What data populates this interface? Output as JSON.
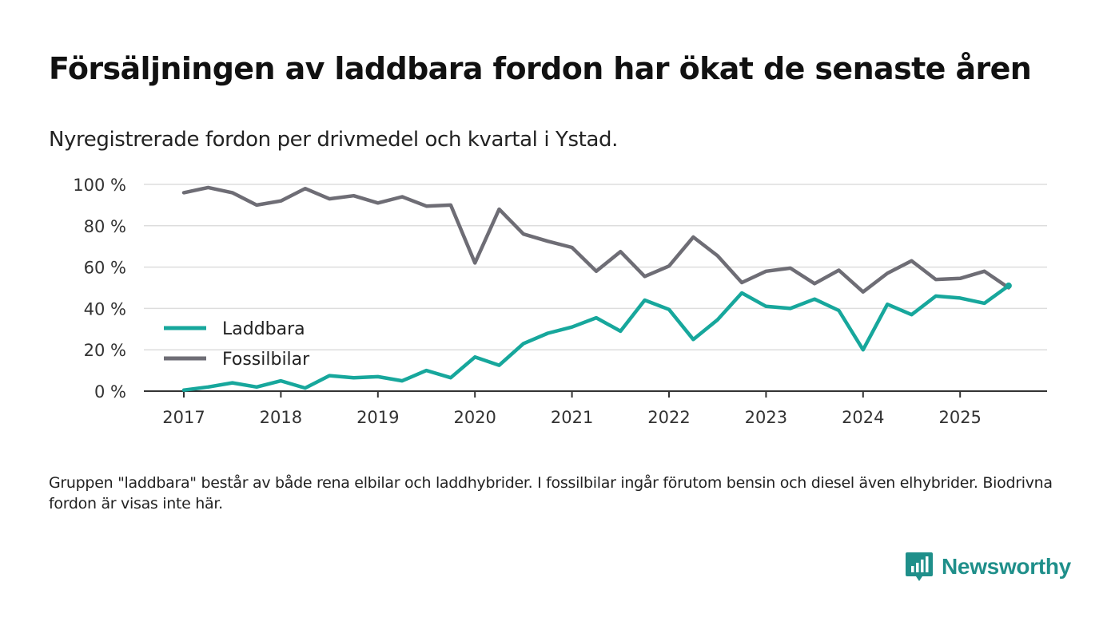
{
  "title": "Försäljningen av laddbara fordon har ökat de senaste åren",
  "subtitle": "Nyregistrerade fordon per drivmedel och kvartal i Ystad.",
  "footnote": "Gruppen \"laddbara\" består av både rena elbilar och laddhybrider. I fossilbilar ingår förutom bensin och diesel även elhybrider. Biodrivna fordon är visas inte här.",
  "brand": {
    "name": "Newsworthy",
    "icon": "newsworthy-logo-icon"
  },
  "colors": {
    "laddbara": "#17a79c",
    "fossil": "#6e6d75",
    "grid": "#dddddd",
    "axis": "#333333",
    "brand": "#1f8f8a"
  },
  "chart_data": {
    "type": "line",
    "title": "Försäljningen av laddbara fordon har ökat de senaste åren",
    "xlabel": "",
    "ylabel": "",
    "ylim": [
      0,
      100
    ],
    "y_ticks": [
      "0 %",
      "20 %",
      "40 %",
      "60 %",
      "80 %",
      "100 %"
    ],
    "x_ticks": [
      "2017",
      "2018",
      "2019",
      "2020",
      "2021",
      "2022",
      "2023",
      "2024",
      "2025"
    ],
    "legend_position": "lower-left",
    "categories": [
      "2017 Q1",
      "2017 Q2",
      "2017 Q3",
      "2017 Q4",
      "2018 Q1",
      "2018 Q2",
      "2018 Q3",
      "2018 Q4",
      "2019 Q1",
      "2019 Q2",
      "2019 Q3",
      "2019 Q4",
      "2020 Q1",
      "2020 Q2",
      "2020 Q3",
      "2020 Q4",
      "2021 Q1",
      "2021 Q2",
      "2021 Q3",
      "2021 Q4",
      "2022 Q1",
      "2022 Q2",
      "2022 Q3",
      "2022 Q4",
      "2023 Q1",
      "2023 Q2",
      "2023 Q3",
      "2023 Q4",
      "2024 Q1",
      "2024 Q2",
      "2024 Q3",
      "2024 Q4",
      "2025 Q1",
      "2025 Q2",
      "2025 Q3"
    ],
    "series": [
      {
        "name": "Laddbara",
        "color": "#17a79c",
        "values": [
          0.5,
          2,
          4,
          2,
          5,
          1.5,
          7.5,
          6.5,
          7,
          5,
          10,
          6.5,
          16.5,
          12.5,
          23,
          28,
          31,
          35.5,
          29,
          44,
          39.5,
          25,
          34.5,
          47.5,
          41,
          40,
          44.5,
          39,
          20,
          42,
          37,
          46,
          45,
          42.5,
          51
        ]
      },
      {
        "name": "Fossilbilar",
        "color": "#6e6d75",
        "values": [
          96,
          98.5,
          96,
          90,
          92,
          98,
          93,
          94.5,
          91,
          94,
          89.5,
          90,
          62,
          88,
          76,
          72.5,
          69.5,
          58,
          67.5,
          55.5,
          60.5,
          74.5,
          65.5,
          52.5,
          58,
          59.5,
          52,
          58.5,
          48,
          57,
          63,
          54,
          54.5,
          58,
          50
        ]
      }
    ]
  }
}
